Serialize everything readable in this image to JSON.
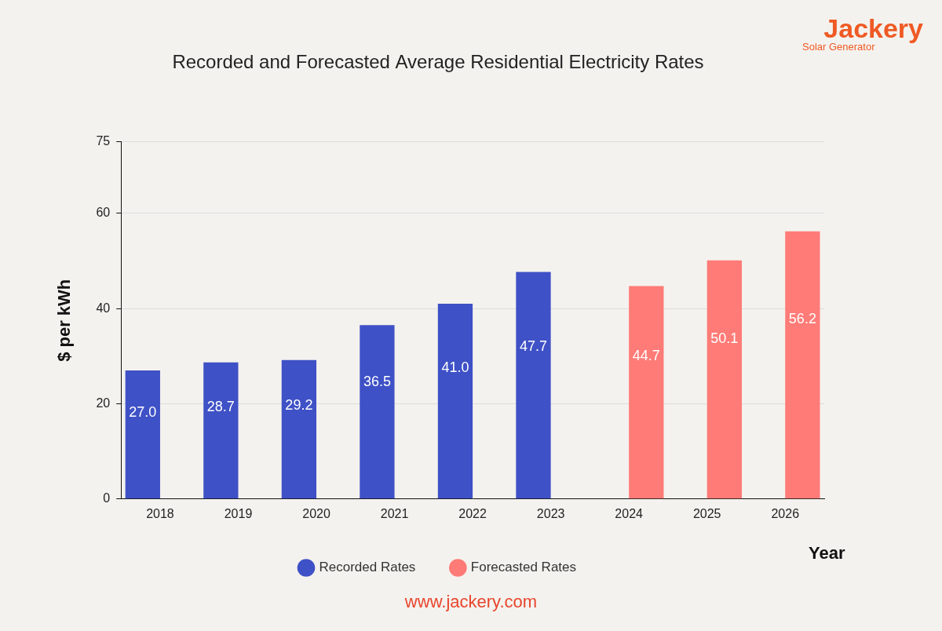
{
  "chart_data": {
    "type": "bar",
    "title": "Recorded and Forecasted Average Residential Electricity Rates",
    "x_label": "Year",
    "y_label": "$ per kWh",
    "logo": "Jackery",
    "logo_subtitle": "Solar Generator",
    "footer": "www.jackery.com",
    "categories": [
      "2018",
      "2019",
      "2020",
      "2021",
      "2022",
      "2023",
      "2024",
      "2025",
      "2026"
    ],
    "series": [
      {
        "name": "Recorded Rates",
        "color": "#3f51c6",
        "values": [
          27,
          28.7,
          29.2,
          36.5,
          41,
          47.7,
          null,
          null,
          null
        ],
        "value_labels": [
          "27.0",
          "28.7",
          "29.2",
          "36.5",
          "41.0",
          "47.7",
          null,
          null,
          null
        ]
      },
      {
        "name": "Forecasted Rates",
        "color": "#ff7b77",
        "values": [
          null,
          null,
          null,
          null,
          null,
          null,
          44.7,
          50.1,
          56.2
        ],
        "value_labels": [
          null,
          null,
          null,
          null,
          null,
          null,
          "44.7",
          "50.1",
          "56.2"
        ]
      }
    ],
    "ylim": [
      0,
      75
    ],
    "yticks": [
      0,
      20,
      40,
      60,
      75
    ],
    "grid": true,
    "legend": "bottom",
    "data_labels": true
  }
}
